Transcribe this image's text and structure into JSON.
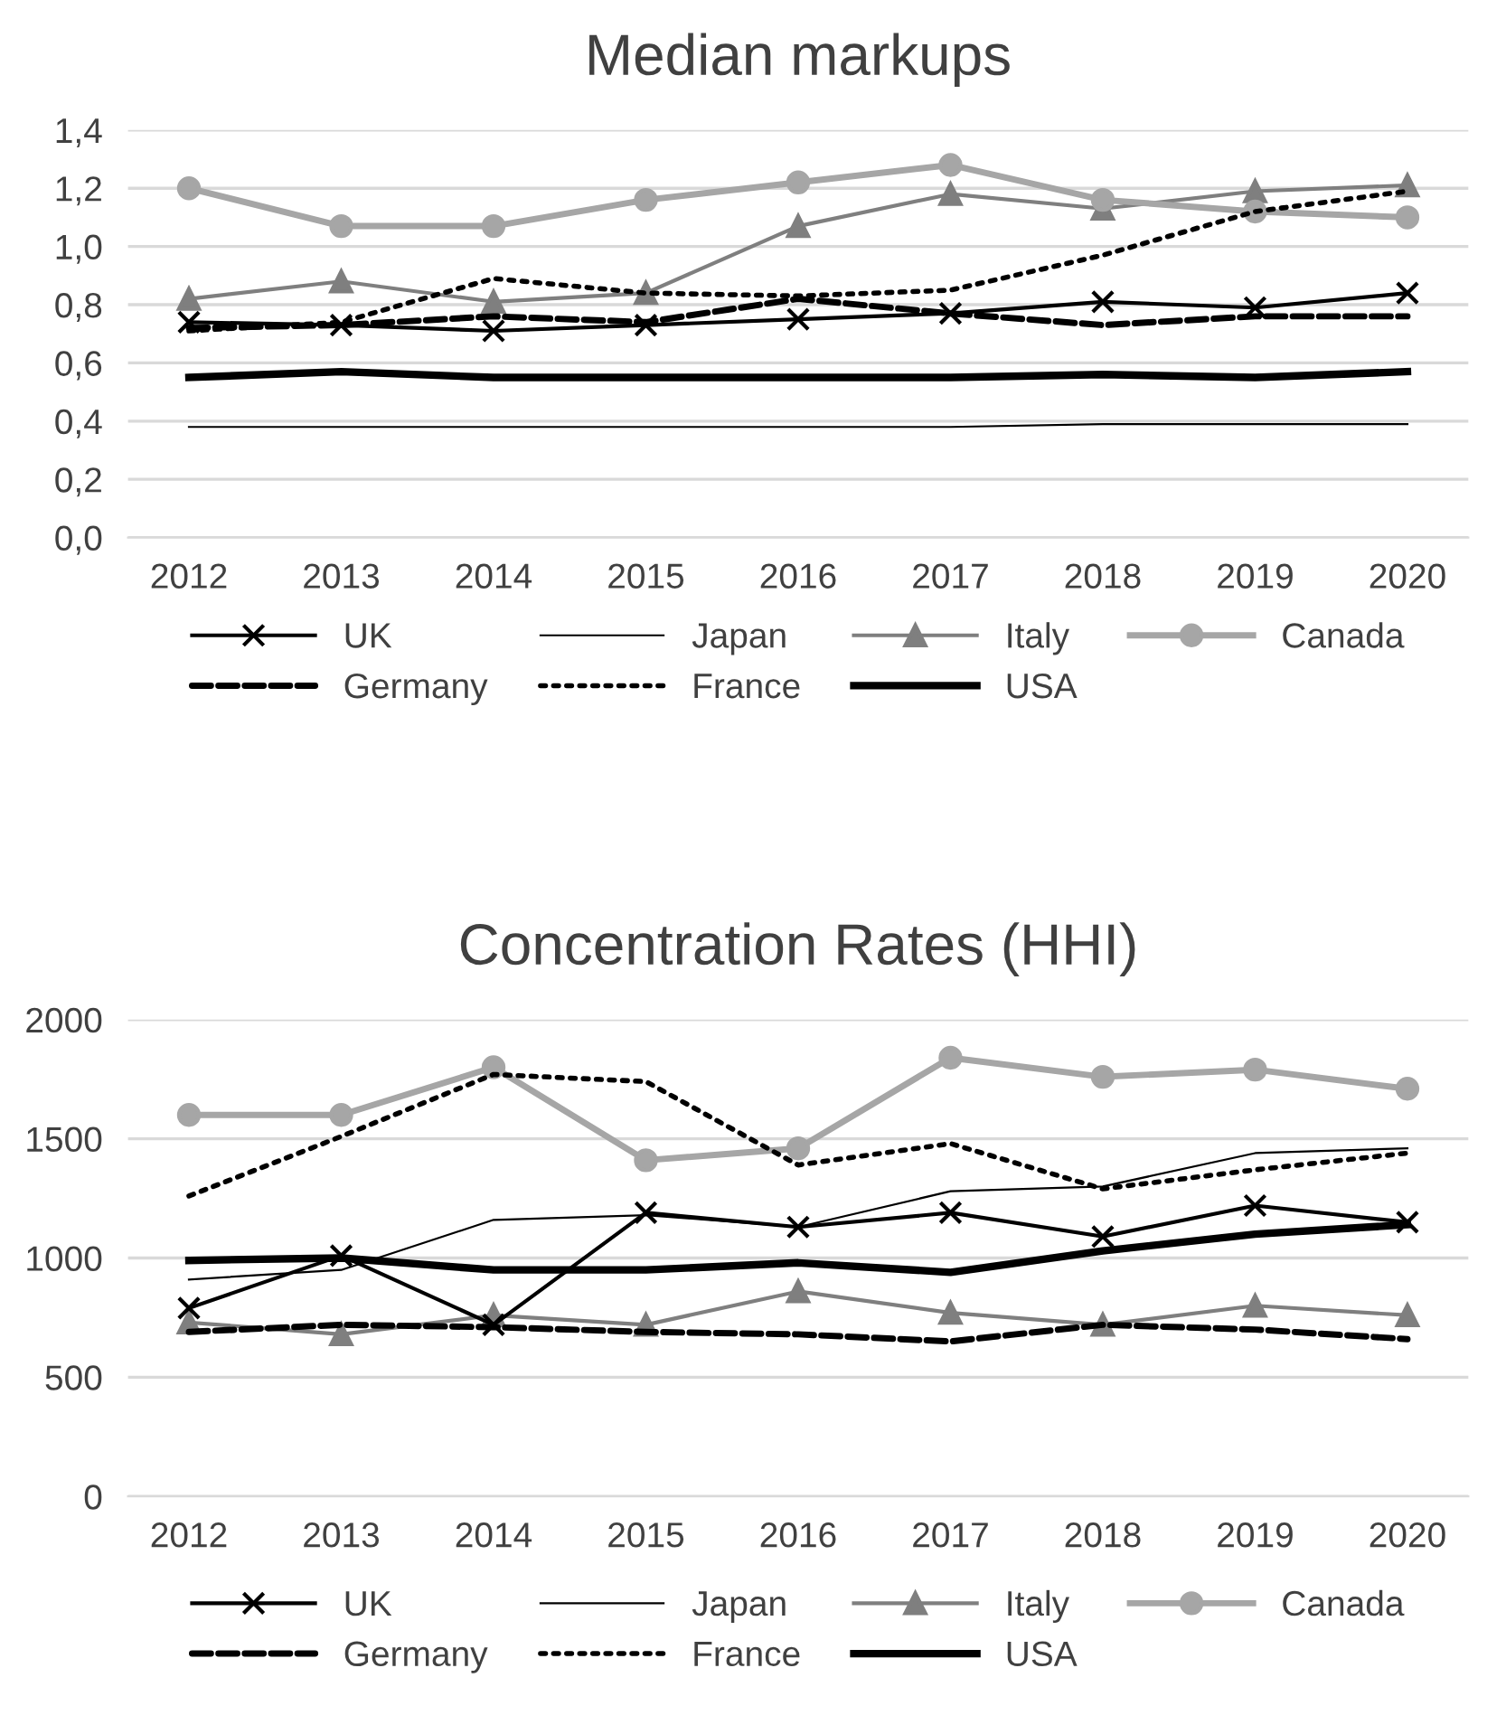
{
  "chart_data": [
    {
      "type": "line",
      "title": "Median markups",
      "x": [
        2012,
        2013,
        2014,
        2015,
        2016,
        2017,
        2018,
        2019,
        2020
      ],
      "xlim": [
        2011.6,
        2020.4
      ],
      "xticks": [
        2012,
        2013,
        2014,
        2015,
        2016,
        2017,
        2018,
        2019,
        2020
      ],
      "ylim": [
        0,
        1.4
      ],
      "yticks": [
        {
          "value": 0,
          "label": "0,0"
        },
        {
          "value": 0.2,
          "label": "0,2"
        },
        {
          "value": 0.4,
          "label": "0,4"
        },
        {
          "value": 0.6,
          "label": "0,6"
        },
        {
          "value": 0.8,
          "label": "0,8"
        },
        {
          "value": 1.0,
          "label": "1,0"
        },
        {
          "value": 1.2,
          "label": "1,2"
        },
        {
          "value": 1.4,
          "label": "1,4"
        }
      ],
      "grid": "y",
      "legend": "bottom",
      "series": [
        {
          "name": "UK",
          "color": "#000000",
          "marker": "cross",
          "line_style": "solid",
          "values": [
            0.74,
            0.73,
            0.71,
            0.73,
            0.75,
            0.77,
            0.81,
            0.79,
            0.84
          ]
        },
        {
          "name": "Japan",
          "color": "#000000",
          "marker": "none",
          "line_style": "solid",
          "values": [
            0.38,
            0.38,
            0.38,
            0.38,
            0.38,
            0.38,
            0.39,
            0.39,
            0.39
          ]
        },
        {
          "name": "Italy",
          "color": "#7f7f7f",
          "marker": "triangle",
          "line_style": "solid",
          "values": [
            0.82,
            0.88,
            0.81,
            0.84,
            1.07,
            1.18,
            1.13,
            1.19,
            1.21
          ]
        },
        {
          "name": "Canada",
          "color": "#a6a6a6",
          "marker": "circle",
          "line_style": "solid",
          "values": [
            1.2,
            1.07,
            1.07,
            1.16,
            1.22,
            1.28,
            1.16,
            1.12,
            1.1
          ]
        },
        {
          "name": "Germany",
          "color": "#000000",
          "marker": "none",
          "line_style": "dashed",
          "values": [
            0.72,
            0.73,
            0.76,
            0.74,
            0.82,
            0.77,
            0.73,
            0.76,
            0.76
          ]
        },
        {
          "name": "France",
          "color": "#000000",
          "marker": "none",
          "line_style": "dotted",
          "values": [
            0.71,
            0.74,
            0.89,
            0.84,
            0.83,
            0.85,
            0.97,
            1.12,
            1.19
          ]
        },
        {
          "name": "USA",
          "color": "#000000",
          "marker": "none",
          "line_style": "solid",
          "values": [
            0.55,
            0.57,
            0.55,
            0.55,
            0.55,
            0.55,
            0.56,
            0.55,
            0.57
          ]
        }
      ]
    },
    {
      "type": "line",
      "title": "Concentration Rates (HHI)",
      "x": [
        2012,
        2013,
        2014,
        2015,
        2016,
        2017,
        2018,
        2019,
        2020
      ],
      "xlim": [
        2011.6,
        2020.4
      ],
      "xticks": [
        2012,
        2013,
        2014,
        2015,
        2016,
        2017,
        2018,
        2019,
        2020
      ],
      "ylim": [
        0,
        2000
      ],
      "yticks": [
        0,
        500,
        1000,
        1500,
        2000
      ],
      "grid": "y",
      "legend": "bottom",
      "series": [
        {
          "name": "UK",
          "color": "#000000",
          "marker": "cross",
          "line_style": "solid",
          "values": [
            790,
            1010,
            720,
            1190,
            1130,
            1190,
            1090,
            1220,
            1150
          ]
        },
        {
          "name": "Japan",
          "color": "#000000",
          "marker": "none",
          "line_style": "solid",
          "values": [
            910,
            950,
            1160,
            1180,
            1130,
            1280,
            1300,
            1440,
            1460
          ]
        },
        {
          "name": "Italy",
          "color": "#7f7f7f",
          "marker": "triangle",
          "line_style": "solid",
          "values": [
            730,
            680,
            760,
            720,
            860,
            770,
            720,
            800,
            760
          ]
        },
        {
          "name": "Canada",
          "color": "#a6a6a6",
          "marker": "circle",
          "line_style": "solid",
          "values": [
            1600,
            1600,
            1800,
            1410,
            1460,
            1840,
            1760,
            1790,
            1710
          ]
        },
        {
          "name": "Germany",
          "color": "#000000",
          "marker": "none",
          "line_style": "dashed",
          "values": [
            690,
            720,
            710,
            690,
            680,
            650,
            720,
            700,
            660
          ]
        },
        {
          "name": "France",
          "color": "#000000",
          "marker": "none",
          "line_style": "dotted",
          "values": [
            1260,
            1510,
            1770,
            1740,
            1390,
            1480,
            1290,
            1370,
            1440
          ]
        },
        {
          "name": "USA",
          "color": "#000000",
          "marker": "none",
          "line_style": "solid",
          "values": [
            990,
            1000,
            950,
            950,
            980,
            940,
            1030,
            1100,
            1140
          ]
        }
      ]
    }
  ]
}
